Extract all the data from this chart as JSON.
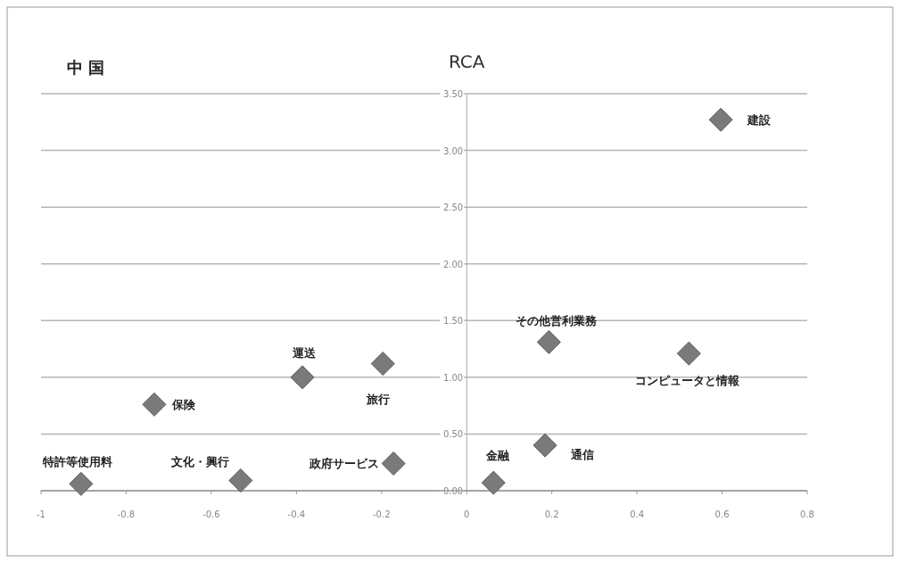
{
  "chart_data": {
    "type": "scatter",
    "title": "中 国",
    "ylabel": "RCA",
    "x": [
      -0.906,
      -0.531,
      -0.734,
      -0.386,
      -0.197,
      -0.172,
      0.063,
      0.184,
      0.193,
      0.522,
      0.597
    ],
    "series": [
      {
        "color": "#7a7a7a",
        "values": [
          0.06,
          0.09,
          0.76,
          1.0,
          1.12,
          0.24,
          0.07,
          0.4,
          1.31,
          1.21,
          3.27
        ]
      }
    ],
    "annotations": [
      {
        "text": "特許等使用料",
        "x": -0.906,
        "y": 0.06
      },
      {
        "text": "文化・興行",
        "x": -0.531,
        "y": 0.09
      },
      {
        "text": "保険",
        "x": -0.734,
        "y": 0.76
      },
      {
        "text": "運送",
        "x": -0.386,
        "y": 1.0
      },
      {
        "text": "旅行",
        "x": -0.197,
        "y": 1.12
      },
      {
        "text": "政府サービス",
        "x": -0.172,
        "y": 0.24
      },
      {
        "text": "金融",
        "x": 0.063,
        "y": 0.07
      },
      {
        "text": "通信",
        "x": 0.184,
        "y": 0.4
      },
      {
        "text": "その他営利業務",
        "x": 0.193,
        "y": 1.31
      },
      {
        "text": "コンピュータと情報",
        "x": 0.522,
        "y": 1.21
      },
      {
        "text": "建設",
        "x": 0.597,
        "y": 3.27
      }
    ],
    "xlim": [
      -1,
      0.8
    ],
    "xticks": [
      -1,
      -0.8,
      -0.6,
      -0.4,
      -0.2,
      0,
      0.2,
      0.4,
      0.6,
      0.8
    ],
    "ylim": [
      0,
      3.5
    ],
    "yticks": [
      {
        "value": 0,
        "label": "0.00"
      },
      {
        "value": 0.5,
        "label": "0.50"
      },
      {
        "value": 1,
        "label": "1.00"
      },
      {
        "value": 1.5,
        "label": "1.50"
      },
      {
        "value": 2,
        "label": "2.00"
      },
      {
        "value": 2.5,
        "label": "2.50"
      },
      {
        "value": 3,
        "label": "3.00"
      },
      {
        "value": 3.5,
        "label": "3.50"
      }
    ],
    "grid": "y",
    "marker": "diamond"
  }
}
